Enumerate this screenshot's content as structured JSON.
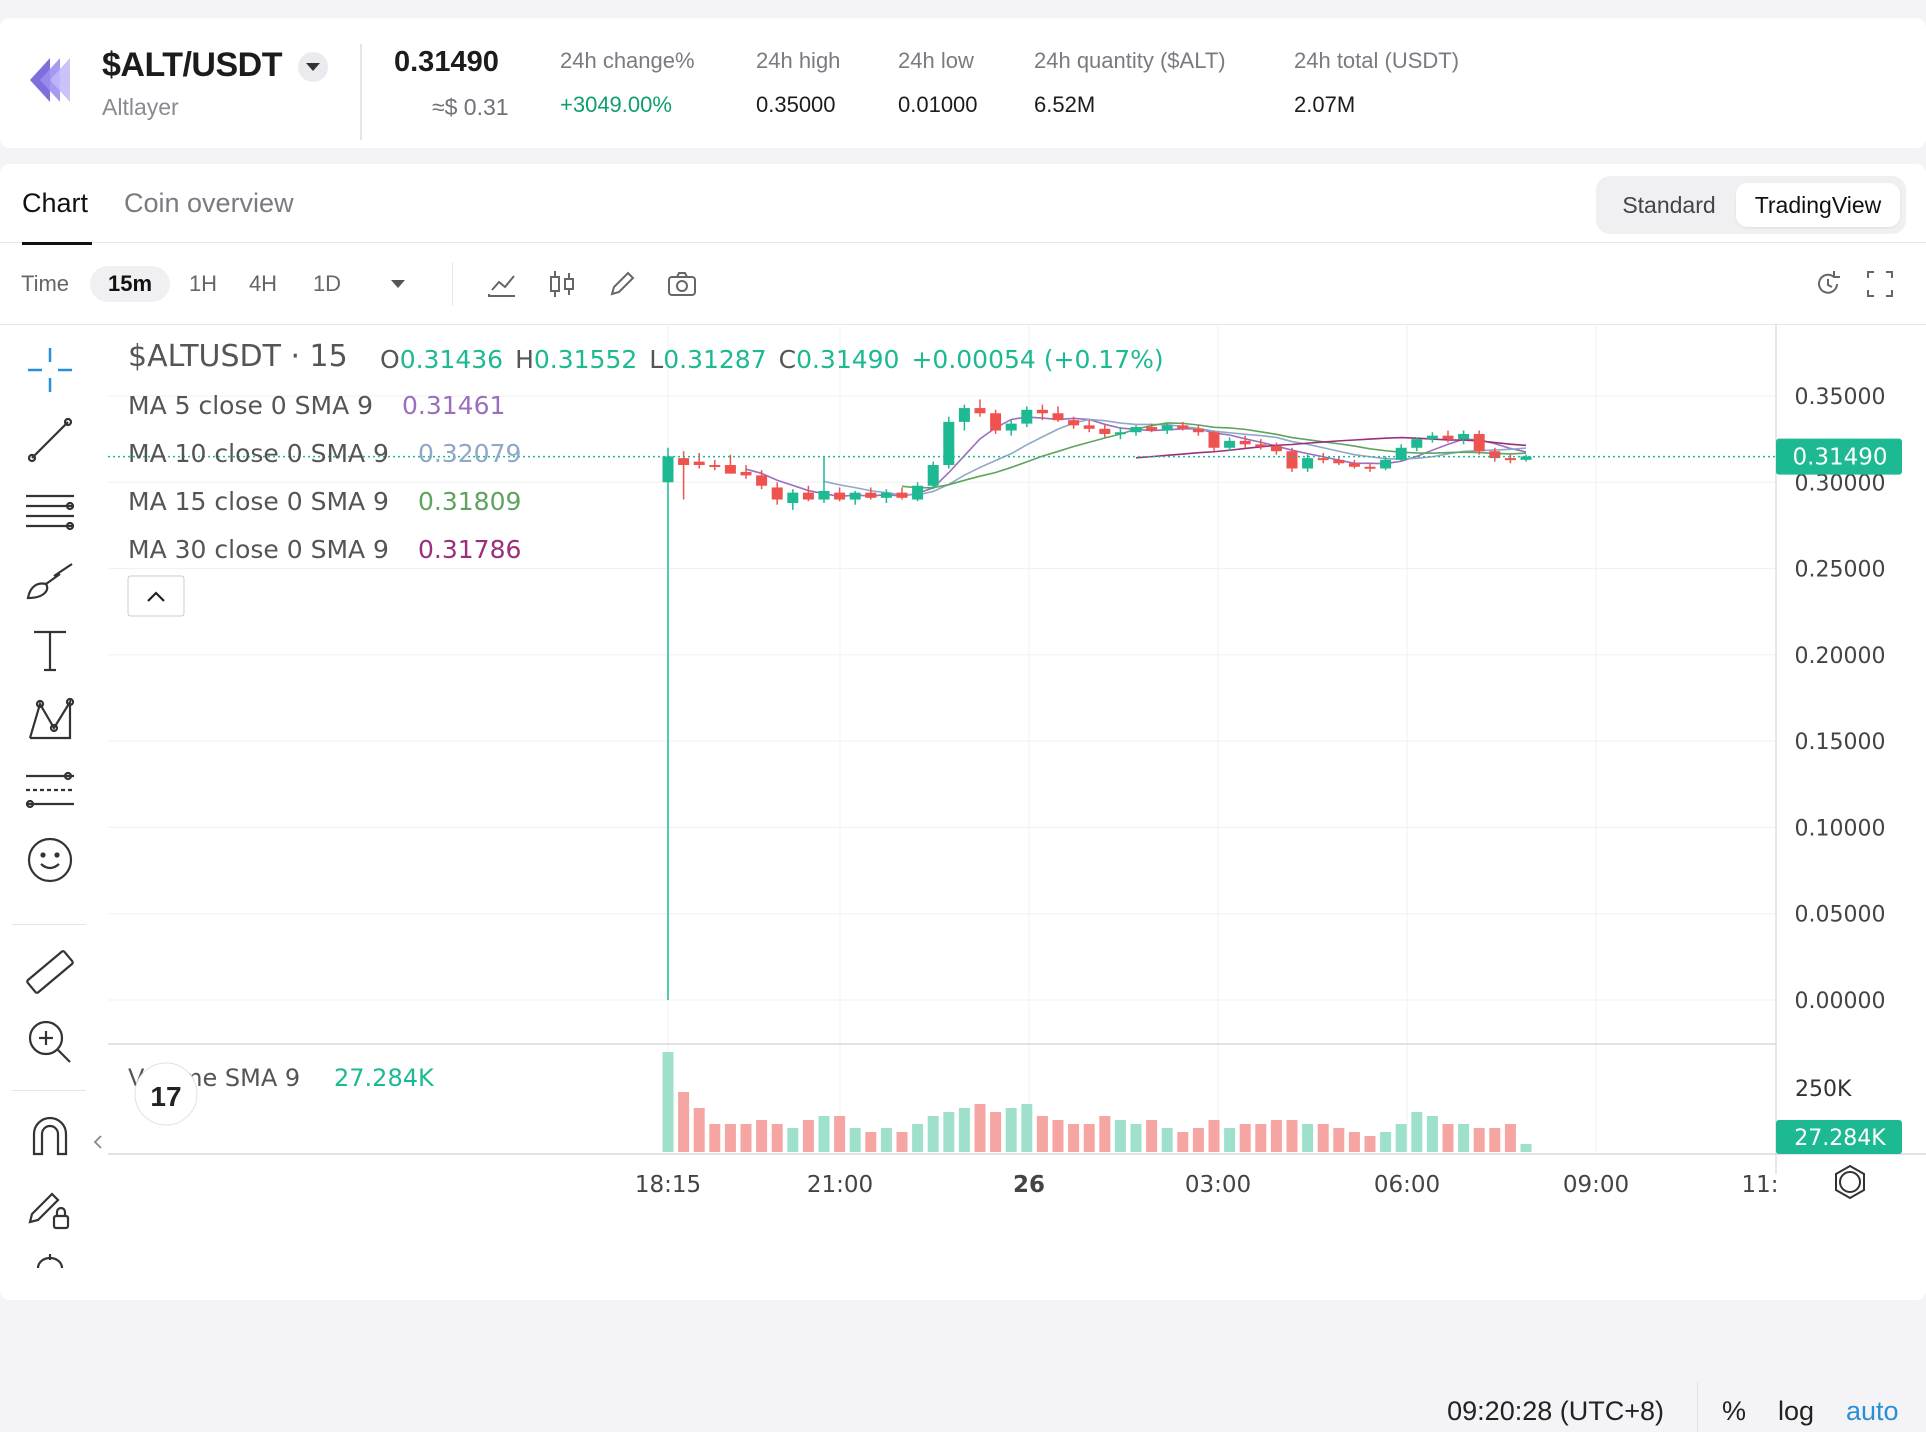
{
  "ticker": {
    "pair": "$ALT/USDT",
    "coin_name": "Altlayer",
    "price": "0.31490",
    "price_usd": "≈$ 0.31",
    "stats": [
      {
        "label": "24h change%",
        "value": "+3049.00%",
        "positive": true
      },
      {
        "label": "24h high",
        "value": "0.35000"
      },
      {
        "label": "24h low",
        "value": "0.01000"
      },
      {
        "label": "24h quantity ($ALT)",
        "value": "6.52M"
      },
      {
        "label": "24h total (USDT)",
        "value": "2.07M"
      }
    ]
  },
  "tabs": {
    "chart": "Chart",
    "overview": "Coin overview"
  },
  "view_toggle": {
    "standard": "Standard",
    "tradingview": "TradingView"
  },
  "toolbar": {
    "time_label": "Time",
    "intervals": [
      "15m",
      "1H",
      "4H",
      "1D"
    ],
    "active_interval": "15m",
    "icons": [
      "indicators-icon",
      "chart-type-icon",
      "draw-icon",
      "screenshot-icon",
      "replay-icon",
      "fullscreen-icon"
    ]
  },
  "legend": {
    "symbol": "$ALTUSDT · 15",
    "ohlc": {
      "o_label": "O",
      "o": "0.31436",
      "h_label": "H",
      "h": "0.31552",
      "l_label": "L",
      "l": "0.31287",
      "c_label": "C",
      "c": "0.31490",
      "change": "+0.00054 (+0.17%)"
    },
    "mas": [
      {
        "label": "MA 5 close 0 SMA 9",
        "value": "0.31461",
        "color": "#9b6fbf"
      },
      {
        "label": "MA 10 close 0 SMA 9",
        "value": "0.32079",
        "color": "#8fa8c8"
      },
      {
        "label": "MA 15 close 0 SMA 9",
        "value": "0.31809",
        "color": "#5fa35f"
      },
      {
        "label": "MA 30 close 0 SMA 9",
        "value": "0.31786",
        "color": "#9a2f7a"
      }
    ],
    "volume_label": "Volume SMA 9",
    "volume_value": "27.284K"
  },
  "colors": {
    "up": "#1cb992",
    "down": "#ef5350",
    "up_vol": "#9fe0cc",
    "down_vol": "#f5a6a3",
    "accent": "#2a8fd6"
  },
  "chart_data": {
    "type": "candlestick",
    "x_ticks": [
      "18:15",
      "21:00",
      "26",
      "03:00",
      "06:00",
      "09:00",
      "11:"
    ],
    "y_ticks": [
      "0.35000",
      "0.30000",
      "0.25000",
      "0.20000",
      "0.15000",
      "0.10000",
      "0.05000",
      "0.00000"
    ],
    "ylim": [
      0.0,
      0.35
    ],
    "last_price": "0.31490",
    "volume_ticks": [
      "250K"
    ],
    "volume_last": "27.284K",
    "candles": [
      [
        0.3,
        0.32,
        0.0,
        0.315
      ],
      [
        0.314,
        0.318,
        0.29,
        0.31
      ],
      [
        0.312,
        0.317,
        0.308,
        0.31
      ],
      [
        0.31,
        0.313,
        0.307,
        0.309
      ],
      [
        0.31,
        0.316,
        0.306,
        0.305
      ],
      [
        0.306,
        0.31,
        0.302,
        0.304
      ],
      [
        0.304,
        0.307,
        0.296,
        0.298
      ],
      [
        0.297,
        0.3,
        0.287,
        0.29
      ],
      [
        0.288,
        0.296,
        0.284,
        0.294
      ],
      [
        0.294,
        0.298,
        0.289,
        0.29
      ],
      [
        0.29,
        0.315,
        0.288,
        0.295
      ],
      [
        0.294,
        0.297,
        0.289,
        0.29
      ],
      [
        0.29,
        0.295,
        0.287,
        0.294
      ],
      [
        0.294,
        0.297,
        0.29,
        0.291
      ],
      [
        0.291,
        0.296,
        0.288,
        0.294
      ],
      [
        0.294,
        0.297,
        0.29,
        0.291
      ],
      [
        0.29,
        0.3,
        0.289,
        0.298
      ],
      [
        0.298,
        0.312,
        0.296,
        0.31
      ],
      [
        0.31,
        0.338,
        0.308,
        0.335
      ],
      [
        0.335,
        0.345,
        0.33,
        0.343
      ],
      [
        0.343,
        0.348,
        0.338,
        0.34
      ],
      [
        0.34,
        0.342,
        0.328,
        0.33
      ],
      [
        0.33,
        0.336,
        0.327,
        0.334
      ],
      [
        0.334,
        0.344,
        0.332,
        0.342
      ],
      [
        0.342,
        0.345,
        0.336,
        0.34
      ],
      [
        0.34,
        0.344,
        0.335,
        0.336
      ],
      [
        0.336,
        0.338,
        0.331,
        0.333
      ],
      [
        0.333,
        0.336,
        0.329,
        0.331
      ],
      [
        0.331,
        0.334,
        0.326,
        0.328
      ],
      [
        0.328,
        0.332,
        0.325,
        0.329
      ],
      [
        0.329,
        0.333,
        0.327,
        0.332
      ],
      [
        0.332,
        0.334,
        0.329,
        0.33
      ],
      [
        0.33,
        0.334,
        0.328,
        0.333
      ],
      [
        0.333,
        0.335,
        0.33,
        0.331
      ],
      [
        0.331,
        0.333,
        0.327,
        0.329
      ],
      [
        0.329,
        0.33,
        0.318,
        0.32
      ],
      [
        0.32,
        0.326,
        0.318,
        0.324
      ],
      [
        0.324,
        0.327,
        0.32,
        0.322
      ],
      [
        0.322,
        0.325,
        0.319,
        0.321
      ],
      [
        0.321,
        0.323,
        0.316,
        0.318
      ],
      [
        0.318,
        0.32,
        0.306,
        0.308
      ],
      [
        0.308,
        0.316,
        0.306,
        0.314
      ],
      [
        0.314,
        0.317,
        0.311,
        0.313
      ],
      [
        0.313,
        0.315,
        0.31,
        0.311
      ],
      [
        0.311,
        0.313,
        0.308,
        0.309
      ],
      [
        0.309,
        0.311,
        0.306,
        0.308
      ],
      [
        0.308,
        0.315,
        0.307,
        0.313
      ],
      [
        0.313,
        0.322,
        0.312,
        0.32
      ],
      [
        0.32,
        0.326,
        0.318,
        0.325
      ],
      [
        0.325,
        0.329,
        0.323,
        0.327
      ],
      [
        0.327,
        0.33,
        0.323,
        0.325
      ],
      [
        0.325,
        0.33,
        0.322,
        0.328
      ],
      [
        0.328,
        0.33,
        0.316,
        0.318
      ],
      [
        0.318,
        0.32,
        0.312,
        0.314
      ],
      [
        0.314,
        0.316,
        0.311,
        0.313
      ],
      [
        0.313,
        0.316,
        0.312,
        0.315
      ]
    ],
    "volumes": [
      250,
      150,
      110,
      70,
      70,
      70,
      80,
      70,
      60,
      80,
      90,
      90,
      60,
      50,
      60,
      50,
      70,
      90,
      100,
      110,
      120,
      100,
      110,
      120,
      90,
      80,
      70,
      70,
      90,
      80,
      70,
      80,
      60,
      50,
      60,
      80,
      60,
      70,
      70,
      80,
      80,
      70,
      70,
      60,
      50,
      40,
      50,
      70,
      100,
      90,
      70,
      70,
      60,
      60,
      70,
      20
    ]
  }
}
